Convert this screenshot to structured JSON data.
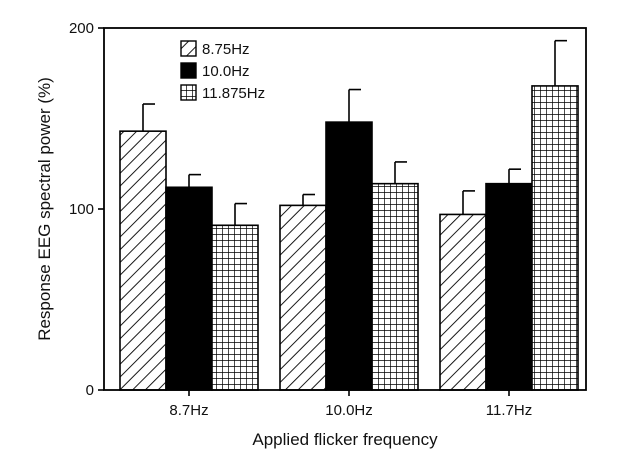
{
  "chart_data": {
    "type": "bar",
    "title": "",
    "xlabel": "Applied flicker frequency",
    "ylabel": "Response EEG spectral power (%)",
    "ylim": [
      0,
      200
    ],
    "yticks": [
      0,
      100,
      200
    ],
    "categories": [
      "8.7Hz",
      "10.0Hz",
      "11.7Hz"
    ],
    "series": [
      {
        "name": "8.75Hz",
        "pattern": "diagonal-hatch",
        "values": [
          143,
          102,
          97
        ],
        "errors": [
          15,
          6,
          13
        ]
      },
      {
        "name": "10.0Hz",
        "pattern": "solid-black",
        "values": [
          112,
          148,
          114
        ],
        "errors": [
          7,
          18,
          8
        ]
      },
      {
        "name": "11.875Hz",
        "pattern": "grid-hatch",
        "values": [
          91,
          114,
          168
        ],
        "errors": [
          12,
          12,
          25
        ]
      }
    ],
    "legend_position": "top-left",
    "grid": false,
    "colors": {
      "ink": "#000000",
      "background": "#ffffff"
    }
  }
}
